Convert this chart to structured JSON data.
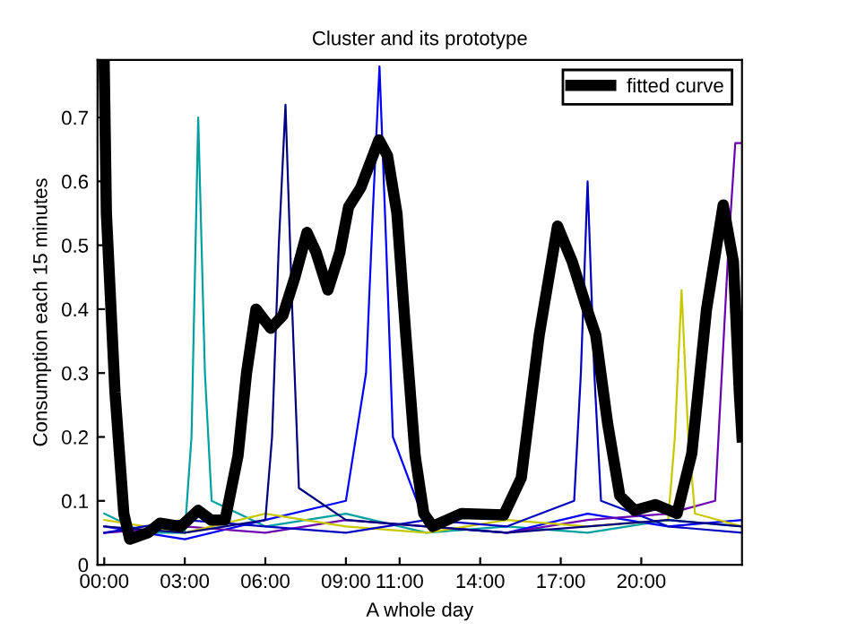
{
  "chart_data": {
    "type": "line",
    "title": "Cluster and its prototype",
    "xlabel": "A whole day",
    "ylabel": "Consumption each 15 minutes",
    "xlim": [
      -0.25,
      23.75
    ],
    "ylim": [
      0,
      0.79
    ],
    "xticks": [
      {
        "value": 0,
        "label": "00:00"
      },
      {
        "value": 3,
        "label": "03:00"
      },
      {
        "value": 6,
        "label": "06:00"
      },
      {
        "value": 9,
        "label": "09:00"
      },
      {
        "value": 11,
        "label": "11:00"
      },
      {
        "value": 14,
        "label": "14:00"
      },
      {
        "value": 17,
        "label": "17:00"
      },
      {
        "value": 20,
        "label": "20:00"
      }
    ],
    "yticks": [
      0,
      0.1,
      0.2,
      0.3,
      0.4,
      0.5,
      0.6,
      0.7
    ],
    "grid": false,
    "legend": "top right",
    "series": [
      {
        "color": "#00a0a0",
        "x": [
          0,
          1.5,
          3,
          3.25,
          3.5,
          3.75,
          4,
          6,
          9,
          12,
          15,
          18,
          21,
          23.75
        ],
        "values": [
          0.08,
          0.05,
          0.05,
          0.2,
          0.7,
          0.3,
          0.1,
          0.06,
          0.08,
          0.05,
          0.06,
          0.05,
          0.07,
          0.06
        ]
      },
      {
        "color": "#0000ff",
        "x": [
          0,
          3,
          6,
          9,
          9.75,
          10,
          10.25,
          10.5,
          10.75,
          12,
          15,
          18,
          21,
          23.75
        ],
        "values": [
          0.06,
          0.04,
          0.07,
          0.1,
          0.3,
          0.55,
          0.78,
          0.5,
          0.2,
          0.06,
          0.05,
          0.08,
          0.06,
          0.07
        ]
      },
      {
        "color": "#6a00b0",
        "x": [
          0,
          3,
          6,
          9,
          12,
          15,
          18,
          21,
          22.75,
          23,
          23.25,
          23.5,
          23.75
        ],
        "values": [
          0.05,
          0.06,
          0.05,
          0.07,
          0.06,
          0.05,
          0.07,
          0.08,
          0.1,
          0.3,
          0.5,
          0.66,
          0.66
        ]
      },
      {
        "color": "#c8c800",
        "x": [
          0,
          3,
          6,
          9,
          12,
          15,
          18,
          21,
          21.25,
          21.5,
          21.75,
          22,
          23.75
        ],
        "values": [
          0.07,
          0.05,
          0.08,
          0.06,
          0.05,
          0.07,
          0.06,
          0.07,
          0.2,
          0.43,
          0.2,
          0.08,
          0.06
        ]
      },
      {
        "color": "#0000c0",
        "x": [
          0,
          3,
          6,
          9,
          12,
          15,
          17.5,
          17.75,
          18,
          18.25,
          18.5,
          21,
          23.75
        ],
        "values": [
          0.05,
          0.07,
          0.06,
          0.05,
          0.07,
          0.06,
          0.1,
          0.3,
          0.6,
          0.3,
          0.1,
          0.06,
          0.05
        ]
      },
      {
        "color": "#000080",
        "x": [
          0,
          3,
          6,
          6.25,
          6.5,
          6.75,
          7,
          7.25,
          9,
          12,
          15,
          18,
          21,
          23.75
        ],
        "values": [
          0.06,
          0.05,
          0.07,
          0.2,
          0.5,
          0.72,
          0.4,
          0.12,
          0.07,
          0.06,
          0.05,
          0.06,
          0.07,
          0.06
        ]
      },
      {
        "name": "fitted curve",
        "color": "#000000",
        "x": [
          0,
          0.08,
          0.4,
          0.73,
          0.95,
          1.63,
          2.08,
          2.85,
          3.5,
          3.98,
          4.5,
          4.98,
          5.3,
          5.65,
          6.2,
          6.65,
          7.1,
          7.55,
          7.88,
          8.33,
          8.78,
          9.1,
          9.55,
          10.23,
          10.55,
          10.9,
          11.23,
          11.58,
          11.9,
          12.23,
          13.3,
          14.88,
          15.53,
          16.2,
          16.88,
          17.43,
          17.98,
          18.3,
          18.75,
          19.2,
          19.75,
          20.53,
          21.33,
          21.88,
          22.43,
          23.05,
          23.43,
          23.65,
          23.75
        ],
        "values": [
          0.78,
          0.55,
          0.27,
          0.08,
          0.04,
          0.05,
          0.065,
          0.06,
          0.085,
          0.07,
          0.07,
          0.17,
          0.3,
          0.4,
          0.37,
          0.39,
          0.45,
          0.52,
          0.49,
          0.43,
          0.49,
          0.56,
          0.59,
          0.665,
          0.64,
          0.55,
          0.36,
          0.17,
          0.08,
          0.06,
          0.08,
          0.078,
          0.136,
          0.36,
          0.53,
          0.474,
          0.4,
          0.36,
          0.22,
          0.108,
          0.085,
          0.094,
          0.08,
          0.174,
          0.4,
          0.563,
          0.474,
          0.27,
          0.2
        ]
      }
    ]
  }
}
